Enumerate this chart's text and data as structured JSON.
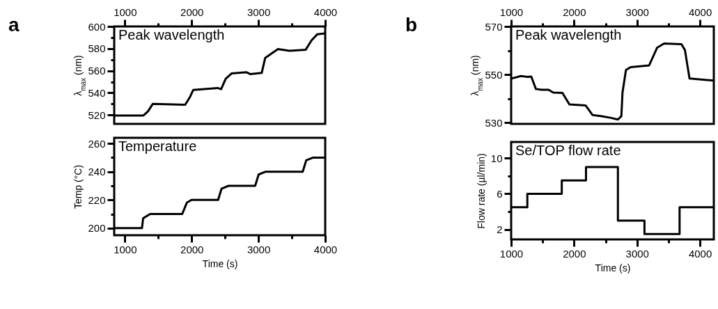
{
  "chart_data": [
    {
      "type": "line",
      "title": "Peak wavelength",
      "ylabel": "λ$_{max}$ (nm)",
      "annotations": [
        "a"
      ],
      "color": "#000000",
      "x": [
        844,
        1278,
        1347,
        1417,
        1903,
        1972,
        2024,
        2389,
        2441,
        2510,
        2597,
        2823,
        2875,
        3049,
        3101,
        3292,
        3465,
        3708,
        3795,
        3882,
        4000
      ],
      "values": [
        519.6,
        519.6,
        523.4,
        530,
        529.3,
        536,
        542.7,
        544.4,
        543.3,
        552.8,
        557.5,
        558.6,
        557,
        558,
        571.6,
        579.6,
        578,
        579,
        587.4,
        593,
        593.7
      ],
      "xlim": [
        840,
        4000
      ],
      "xticks": [
        1000,
        {
          "value": 1500,
          "label": null
        },
        2000,
        {
          "value": 2500,
          "label": null
        },
        3000,
        {
          "value": 3500,
          "label": null
        },
        4000
      ],
      "ylim": [
        512,
        600
      ],
      "yticks": [
        520,
        {
          "value": 530,
          "label": null
        },
        540,
        {
          "value": 550,
          "label": null
        },
        560,
        {
          "value": 570,
          "label": null
        },
        580,
        {
          "value": 590,
          "label": null
        },
        600
      ]
    },
    {
      "type": "line",
      "title": "Temperature",
      "xlabel": "Time (s)",
      "ylabel": "Temp (°C)",
      "color": "#000000",
      "x": [
        844,
        1256,
        1273,
        1378,
        1858,
        1927,
        1997,
        2396,
        2448,
        2552,
        2951,
        3003,
        3108,
        3663,
        3715,
        3819,
        4000
      ],
      "values": [
        200,
        200,
        207,
        210,
        210,
        218,
        220,
        220,
        228,
        230,
        230,
        238,
        240,
        240,
        248,
        250,
        250
      ],
      "xlim": [
        840,
        4000
      ],
      "xticks": [
        1000,
        {
          "value": 1500,
          "label": null
        },
        2000,
        {
          "value": 2500,
          "label": null
        },
        3000,
        {
          "value": 3500,
          "label": null
        },
        4000
      ],
      "ylim": [
        195,
        264
      ],
      "yticks": [
        200,
        {
          "value": 210,
          "label": null
        },
        220,
        {
          "value": 230,
          "label": null
        },
        240,
        {
          "value": 250,
          "label": null
        },
        260
      ]
    },
    {
      "type": "line",
      "title": "Peak wavelength",
      "ylabel": "λ$_{max}$ (nm)",
      "annotations": [
        "b"
      ],
      "color": "#000000",
      "x": [
        1015,
        1154,
        1264,
        1319,
        1393,
        1485,
        1595,
        1668,
        1815,
        1925,
        2182,
        2292,
        2439,
        2586,
        2696,
        2751,
        2769,
        2824,
        2898,
        3192,
        3320,
        3430,
        3706,
        3761,
        3834,
        4220
      ],
      "values": [
        548.4,
        549.4,
        549,
        549.2,
        544,
        543.7,
        543.7,
        542.5,
        542.4,
        537.6,
        537.2,
        533.2,
        532.7,
        532,
        531.3,
        532.7,
        542.5,
        551.9,
        553.1,
        553.8,
        561.2,
        562.9,
        562.6,
        560.2,
        548.4,
        547.5
      ],
      "xlim": [
        1000,
        4220
      ],
      "xticks": [
        1000,
        {
          "value": 1500,
          "label": null
        },
        2000,
        {
          "value": 2500,
          "label": null
        },
        3000,
        {
          "value": 3500,
          "label": null
        },
        4000
      ],
      "ylim": [
        529.5,
        570
      ],
      "yticks": [
        530,
        {
          "value": 540,
          "label": null
        },
        550,
        {
          "value": 560,
          "label": null
        },
        570
      ]
    },
    {
      "type": "step",
      "title": "Se/TOP flow rate",
      "xlabel": "Time (s)",
      "ylabel": "Flow rate (µl/min)",
      "color": "#000000",
      "x": [
        1000,
        1257,
        1804,
        2189,
        2696,
        3118,
        3676,
        4220
      ],
      "values": [
        4.5,
        6,
        7.5,
        9,
        3,
        1.5,
        4.5,
        4.5
      ],
      "xlim": [
        1000,
        4220
      ],
      "xticks": [
        1000,
        {
          "value": 1500,
          "label": null
        },
        2000,
        {
          "value": 2500,
          "label": null
        },
        3000,
        {
          "value": 3500,
          "label": null
        },
        4000
      ],
      "ylim": [
        0.9,
        11.8
      ],
      "yticks": [
        2,
        {
          "value": 4,
          "label": null
        },
        6,
        {
          "value": 8,
          "label": null
        },
        10
      ]
    }
  ]
}
